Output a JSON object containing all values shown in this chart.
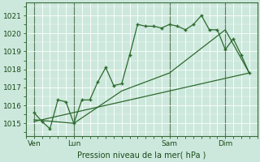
{
  "bg_color": "#cce8dc",
  "grid_color": "#ffffff",
  "line_color": "#2d6a2d",
  "title": "Pression niveau de la mer( hPa )",
  "ylabel_ticks": [
    1015,
    1016,
    1017,
    1018,
    1019,
    1020,
    1021
  ],
  "ylim": [
    1014.3,
    1021.7
  ],
  "xlim": [
    0,
    14.5
  ],
  "xtick_labels": [
    "Ven",
    "Lun",
    "Sam",
    "Dim"
  ],
  "xtick_positions": [
    0.5,
    3.0,
    9.0,
    12.5
  ],
  "vline_positions": [
    0.5,
    3.0,
    9.0,
    12.5
  ],
  "series1_x": [
    0.5,
    1.0,
    1.5,
    2.0,
    2.5,
    3.0,
    3.5,
    4.0,
    4.5,
    5.0,
    5.5,
    6.0,
    6.5,
    7.0,
    7.5,
    8.0,
    8.5,
    9.0,
    9.5,
    10.0,
    10.5,
    11.0,
    11.5,
    12.0,
    12.5,
    13.0,
    13.5,
    14.0
  ],
  "series1_y": [
    1015.6,
    1015.1,
    1014.7,
    1016.3,
    1016.2,
    1015.0,
    1016.3,
    1016.3,
    1017.3,
    1018.1,
    1017.1,
    1017.2,
    1018.8,
    1020.5,
    1020.4,
    1020.4,
    1020.3,
    1020.5,
    1020.4,
    1020.2,
    1020.5,
    1021.0,
    1020.2,
    1020.2,
    1019.1,
    1019.7,
    1018.8,
    1017.8
  ],
  "series2_x": [
    0.5,
    3.0,
    6.0,
    9.0,
    12.5,
    14.0
  ],
  "series2_y": [
    1015.2,
    1015.0,
    1016.8,
    1017.8,
    1020.2,
    1017.8
  ],
  "series3_x": [
    0.5,
    14.0
  ],
  "series3_y": [
    1015.1,
    1017.8
  ],
  "figsize": [
    3.2,
    2.0
  ],
  "dpi": 100
}
